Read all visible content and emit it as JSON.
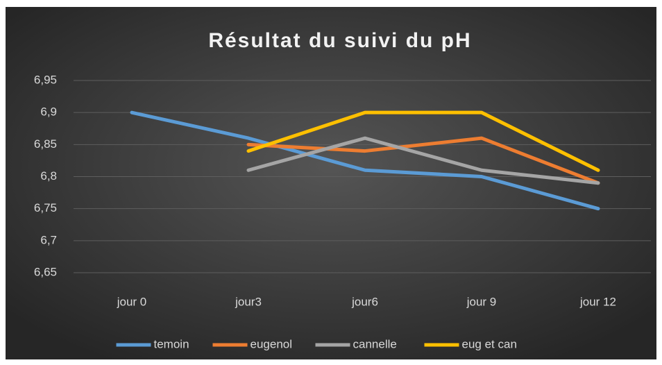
{
  "chart_data": {
    "type": "line",
    "title": "Résultat du suivi du pH",
    "categories": [
      "jour 0",
      "jour3",
      "jour6",
      "jour 9",
      "jour 12"
    ],
    "series": [
      {
        "name": "temoin",
        "color": "#5b9bd5",
        "values": [
          6.9,
          6.86,
          6.81,
          6.8,
          6.75
        ]
      },
      {
        "name": "eugenol",
        "color": "#ed7d31",
        "values": [
          null,
          6.85,
          6.84,
          6.86,
          6.79
        ]
      },
      {
        "name": "cannelle",
        "color": "#a5a5a5",
        "values": [
          null,
          6.81,
          6.86,
          6.81,
          6.79
        ]
      },
      {
        "name": "eug et can",
        "color": "#ffc000",
        "values": [
          null,
          6.84,
          6.9,
          6.9,
          6.81
        ]
      }
    ],
    "ylim": [
      6.65,
      6.95
    ],
    "yticks": [
      {
        "value": 6.65,
        "label": "6,65"
      },
      {
        "value": 6.7,
        "label": "6,7"
      },
      {
        "value": 6.75,
        "label": "6,75"
      },
      {
        "value": 6.8,
        "label": "6,8"
      },
      {
        "value": 6.85,
        "label": "6,85"
      },
      {
        "value": 6.9,
        "label": "6,9"
      },
      {
        "value": 6.95,
        "label": "6,95"
      }
    ],
    "grid": true,
    "legend": "bottom"
  }
}
